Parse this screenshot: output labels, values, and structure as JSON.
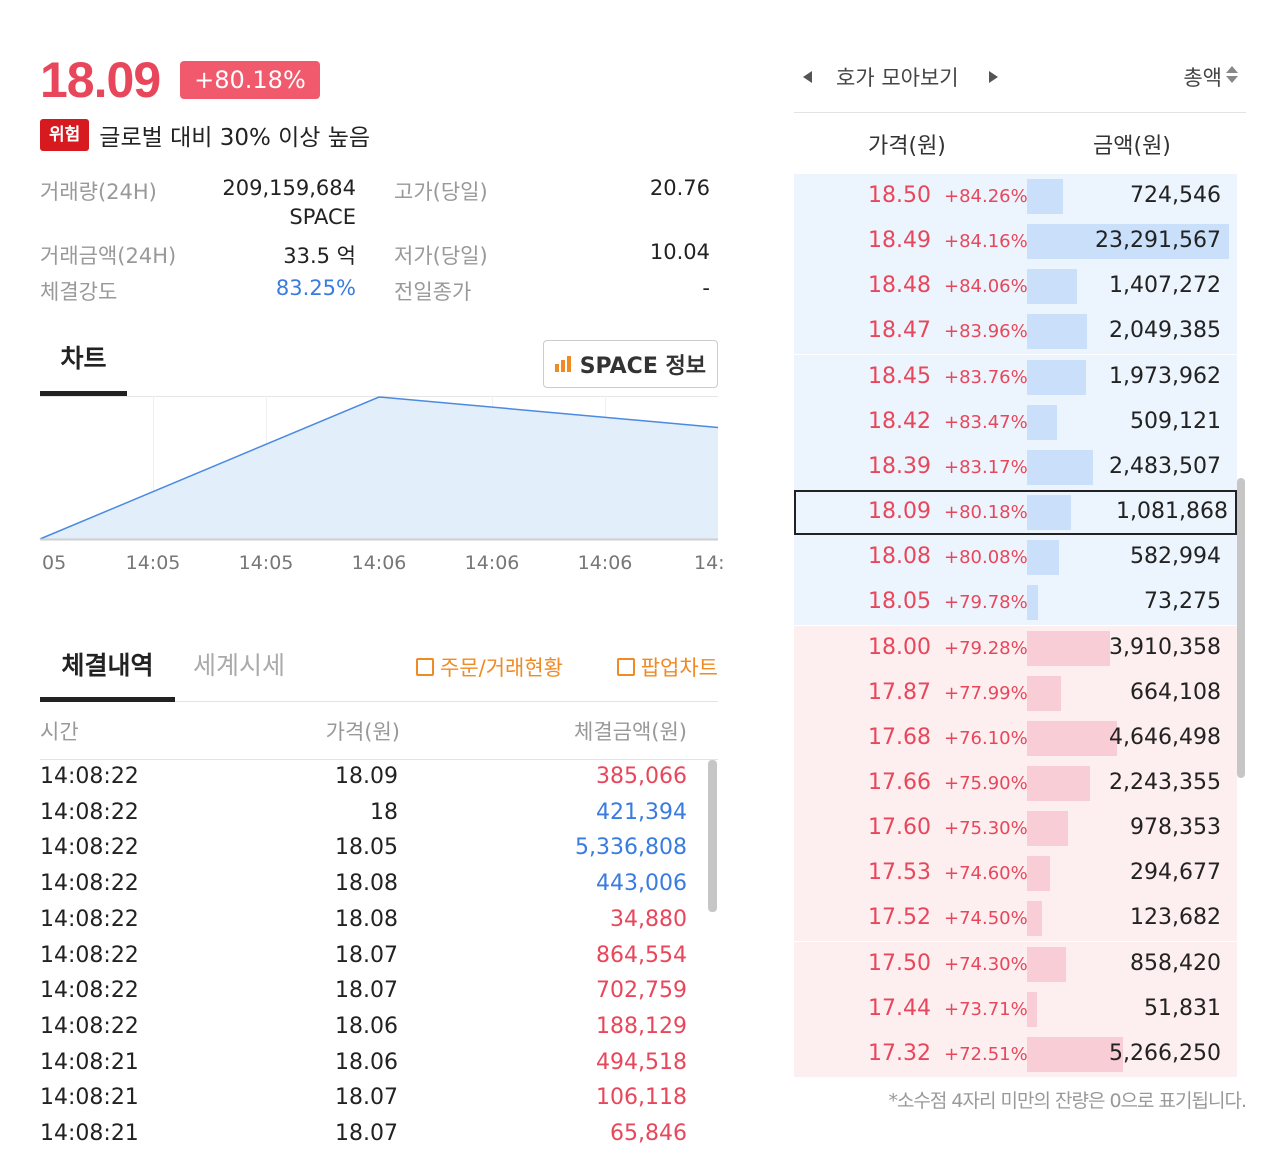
{
  "header": {
    "price": "18.09",
    "change": "+80.18%",
    "warning_badge": "위험",
    "warning_text": "글로벌 대비 30% 이상 높음"
  },
  "stats": {
    "volume_label": "거래량(24H)",
    "volume_value": "209,159,684",
    "volume_unit": "SPACE",
    "high_label": "고가(당일)",
    "high_value": "20.76",
    "turnover_label": "거래금액(24H)",
    "turnover_value": "33.5 억",
    "low_label": "저가(당일)",
    "low_value": "10.04",
    "strength_label": "체결강도",
    "strength_value": "83.25%",
    "prev_close_label": "전일종가",
    "prev_close_value": "-"
  },
  "chart_tab": {
    "label": "차트",
    "info_button": "SPACE 정보"
  },
  "chart_data": {
    "type": "area",
    "x_ticks": [
      "05",
      "14:05",
      "14:05",
      "14:06",
      "14:06",
      "14:06",
      "14:"
    ],
    "series": [
      {
        "values": [
          0.0,
          1.0,
          0.78
        ]
      }
    ],
    "grid": true,
    "color": "#4a8ae0",
    "fill": "#e3eefb"
  },
  "trades_tabs": {
    "trades": "체결내역",
    "world": "세계시세",
    "orders_link": "주문/거래현황",
    "popup_link": "팝업차트"
  },
  "trades_header": {
    "time": "시간",
    "price": "가격(원)",
    "amount": "체결금액(원)"
  },
  "trades": [
    {
      "time": "14:08:22",
      "price": "18.09",
      "amount": "385,066",
      "side": "red"
    },
    {
      "time": "14:08:22",
      "price": "18",
      "amount": "421,394",
      "side": "blue"
    },
    {
      "time": "14:08:22",
      "price": "18.05",
      "amount": "5,336,808",
      "side": "blue"
    },
    {
      "time": "14:08:22",
      "price": "18.08",
      "amount": "443,006",
      "side": "blue"
    },
    {
      "time": "14:08:22",
      "price": "18.08",
      "amount": "34,880",
      "side": "red"
    },
    {
      "time": "14:08:22",
      "price": "18.07",
      "amount": "864,554",
      "side": "red"
    },
    {
      "time": "14:08:22",
      "price": "18.07",
      "amount": "702,759",
      "side": "red"
    },
    {
      "time": "14:08:22",
      "price": "18.06",
      "amount": "188,129",
      "side": "red"
    },
    {
      "time": "14:08:21",
      "price": "18.06",
      "amount": "494,518",
      "side": "red"
    },
    {
      "time": "14:08:21",
      "price": "18.07",
      "amount": "106,118",
      "side": "red"
    },
    {
      "time": "14:08:21",
      "price": "18.07",
      "amount": "65,846",
      "side": "red"
    }
  ],
  "orderbook": {
    "title": "호가 모아보기",
    "sort_label": "총액",
    "price_header": "가격(원)",
    "amount_header": "금액(원)",
    "footnote": "*소수점 4자리 미만의 잔량은 0으로 표기됩니다.",
    "colors": {
      "ask_bg": "#ecf4fd",
      "bid_bg": "#fdeef0",
      "up": "#e8475b",
      "down": "#3a7be0"
    },
    "asks": [
      {
        "price": "18.50",
        "pct": "+84.26%",
        "amount": "724,546",
        "level": 724546
      },
      {
        "price": "18.49",
        "pct": "+84.16%",
        "amount": "23,291,567",
        "level": 23291567
      },
      {
        "price": "18.48",
        "pct": "+84.06%",
        "amount": "1,407,272",
        "level": 1407272
      },
      {
        "price": "18.47",
        "pct": "+83.96%",
        "amount": "2,049,385",
        "level": 2049385
      },
      {
        "price": "18.45",
        "pct": "+83.76%",
        "amount": "1,973,962",
        "level": 1973962
      },
      {
        "price": "18.42",
        "pct": "+83.47%",
        "amount": "509,121",
        "level": 509121
      },
      {
        "price": "18.39",
        "pct": "+83.17%",
        "amount": "2,483,507",
        "level": 2483507
      },
      {
        "price": "18.09",
        "pct": "+80.18%",
        "amount": "1,081,868",
        "level": 1081868,
        "current": true
      },
      {
        "price": "18.08",
        "pct": "+80.08%",
        "amount": "582,994",
        "level": 582994
      },
      {
        "price": "18.05",
        "pct": "+79.78%",
        "amount": "73,275",
        "level": 73275
      }
    ],
    "bids": [
      {
        "price": "18.00",
        "pct": "+79.28%",
        "amount": "3,910,358",
        "level": 3910358
      },
      {
        "price": "17.87",
        "pct": "+77.99%",
        "amount": "664,108",
        "level": 664108
      },
      {
        "price": "17.68",
        "pct": "+76.10%",
        "amount": "4,646,498",
        "level": 4646498
      },
      {
        "price": "17.66",
        "pct": "+75.90%",
        "amount": "2,243,355",
        "level": 2243355
      },
      {
        "price": "17.60",
        "pct": "+75.30%",
        "amount": "978,353",
        "level": 978353
      },
      {
        "price": "17.53",
        "pct": "+74.60%",
        "amount": "294,677",
        "level": 294677
      },
      {
        "price": "17.52",
        "pct": "+74.50%",
        "amount": "123,682",
        "level": 123682
      },
      {
        "price": "17.50",
        "pct": "+74.30%",
        "amount": "858,420",
        "level": 858420
      },
      {
        "price": "17.44",
        "pct": "+73.71%",
        "amount": "51,831",
        "level": 51831
      },
      {
        "price": "17.32",
        "pct": "+72.51%",
        "amount": "5,266,250",
        "level": 5266250
      }
    ]
  }
}
